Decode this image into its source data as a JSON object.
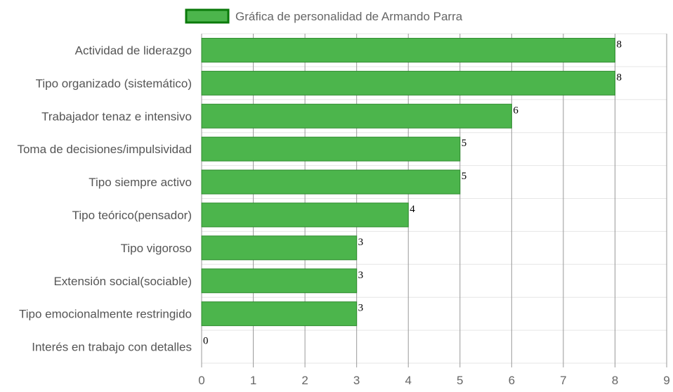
{
  "chart_data": {
    "type": "bar",
    "orientation": "horizontal",
    "categories": [
      "Actividad de liderazgo",
      "Tipo organizado (sistemático)",
      "Trabajador tenaz e intensivo",
      "Toma de decisiones/impulsividad",
      "Tipo siempre activo",
      "Tipo teórico(pensador)",
      "Tipo vigoroso",
      "Extensión social(sociable)",
      "Tipo emocionalmente restringido",
      "Interés en trabajo con detalles"
    ],
    "series": [
      {
        "name": "Gráfica de personalidad de Armando Parra",
        "values": [
          8,
          8,
          6,
          5,
          5,
          4,
          3,
          3,
          3,
          0
        ]
      }
    ],
    "data_labels": [
      "8",
      "8",
      "6",
      "5",
      "5",
      "4",
      "3",
      "3",
      "3",
      "0"
    ],
    "x_ticks": [
      "0",
      "1",
      "2",
      "3",
      "4",
      "5",
      "6",
      "7",
      "8",
      "9"
    ],
    "xlim": [
      0,
      9
    ],
    "grid": true,
    "legend": "top",
    "colors": {
      "bar_fill": "#4cb54c",
      "bar_stroke": "#2e8b2e",
      "legend_fill": "#4cb54c",
      "legend_stroke": "#0a7a0a",
      "grid_vertical": "#999999",
      "grid_horizontal": "#e6e6e6"
    }
  }
}
